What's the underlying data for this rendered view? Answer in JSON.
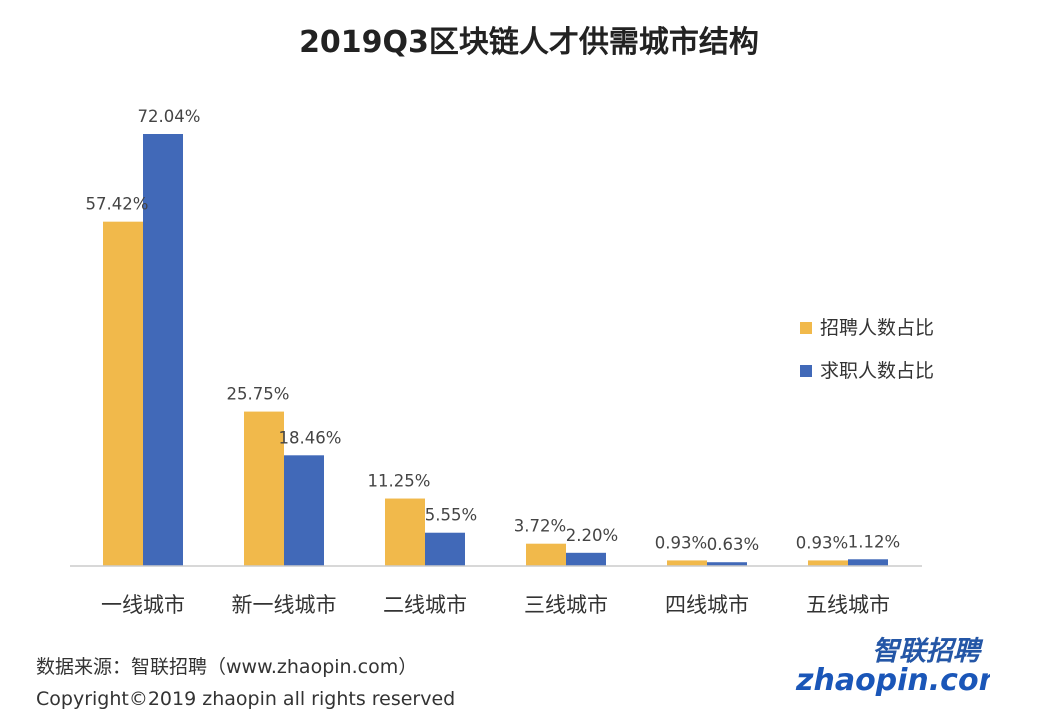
{
  "chart_data": {
    "type": "bar",
    "title": "2019Q3区块链人才供需城市结构",
    "categories": [
      "一线城市",
      "新一线城市",
      "二线城市",
      "三线城市",
      "四线城市",
      "五线城市"
    ],
    "series": [
      {
        "name": "招聘人数占比",
        "color": "#f1b94b",
        "values": [
          57.42,
          25.75,
          11.25,
          3.72,
          0.93,
          0.93
        ],
        "labels": [
          "57.42%",
          "25.75%",
          "11.25%",
          "3.72%",
          "0.93%",
          "0.93%"
        ]
      },
      {
        "name": "求职人数占比",
        "color": "#4169b8",
        "values": [
          72.04,
          18.46,
          5.55,
          2.2,
          0.63,
          1.12
        ],
        "labels": [
          "72.04%",
          "18.46%",
          "5.55%",
          "2.20%",
          "0.63%",
          "1.12%"
        ]
      }
    ],
    "ylim": [
      0,
      72.04
    ],
    "grid": false,
    "legend_position": "right"
  },
  "footer": {
    "source": "数据来源：智联招聘（www.zhaopin.com）",
    "copyright": "Copyright©2019 zhaopin all rights reserved"
  },
  "logo": {
    "cn_text": "智联招聘",
    "en_text": "zhaopin.com"
  }
}
